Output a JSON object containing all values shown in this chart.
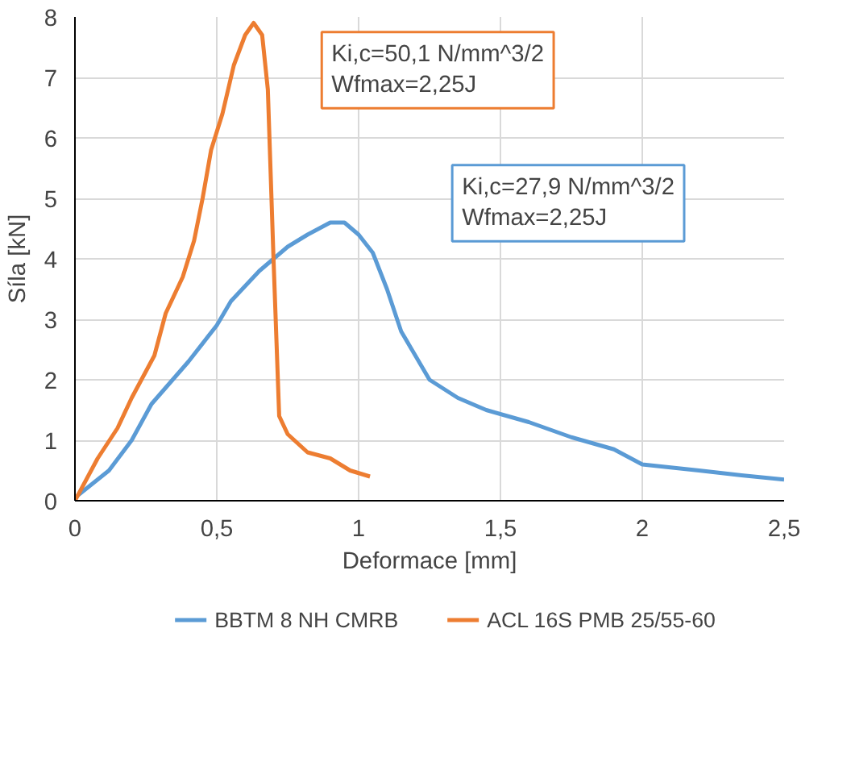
{
  "chart_data": {
    "type": "line",
    "xlabel": "Deformace [mm]",
    "ylabel": "Síla [kN]",
    "xlim": [
      0,
      2.5
    ],
    "ylim": [
      0,
      8
    ],
    "xticks": [
      0,
      {
        "value": 0.5,
        "label": "0,5"
      },
      1,
      {
        "value": 1.5,
        "label": "1,5"
      },
      2,
      {
        "value": 2.5,
        "label": "2,5"
      }
    ],
    "yticks": [
      0,
      1,
      2,
      3,
      4,
      5,
      6,
      7,
      8
    ],
    "grid": true,
    "legend": "bottom",
    "marker": "none",
    "line_style": "solid",
    "annotations": [
      "Ki,c=27,9 N/mm^3/2\nWfmax=2,25J",
      "Ki,c=50,1 N/mm^3/2\nWfmax=2,25J"
    ],
    "series": [
      {
        "name": "BBTM 8 NH CMRB",
        "color": "#5b9bd5",
        "x": [
          0,
          0.12,
          0.2,
          0.27,
          0.4,
          0.5,
          0.55,
          0.65,
          0.75,
          0.82,
          0.9,
          0.95,
          1.0,
          1.05,
          1.1,
          1.15,
          1.25,
          1.35,
          1.45,
          1.6,
          1.75,
          1.9,
          2.0,
          2.2,
          2.35,
          2.5
        ],
        "values": [
          0.05,
          0.5,
          1.0,
          1.6,
          2.3,
          2.9,
          3.3,
          3.8,
          4.2,
          4.4,
          4.6,
          4.6,
          4.4,
          4.1,
          3.5,
          2.8,
          2.0,
          1.7,
          1.5,
          1.3,
          1.05,
          0.85,
          0.6,
          0.5,
          0.42,
          0.35
        ]
      },
      {
        "name": "ACL 16S PMB 25/55-60",
        "color": "#ed7d31",
        "x": [
          0,
          0.08,
          0.15,
          0.2,
          0.28,
          0.32,
          0.38,
          0.42,
          0.45,
          0.48,
          0.52,
          0.56,
          0.6,
          0.63,
          0.66,
          0.68,
          0.7,
          0.72,
          0.75,
          0.82,
          0.9,
          0.97,
          1.04
        ],
        "values": [
          0,
          0.7,
          1.2,
          1.7,
          2.4,
          3.1,
          3.7,
          4.3,
          5.0,
          5.8,
          6.4,
          7.2,
          7.7,
          7.9,
          7.7,
          6.8,
          4.0,
          1.4,
          1.1,
          0.8,
          0.7,
          0.5,
          0.4
        ]
      }
    ]
  }
}
